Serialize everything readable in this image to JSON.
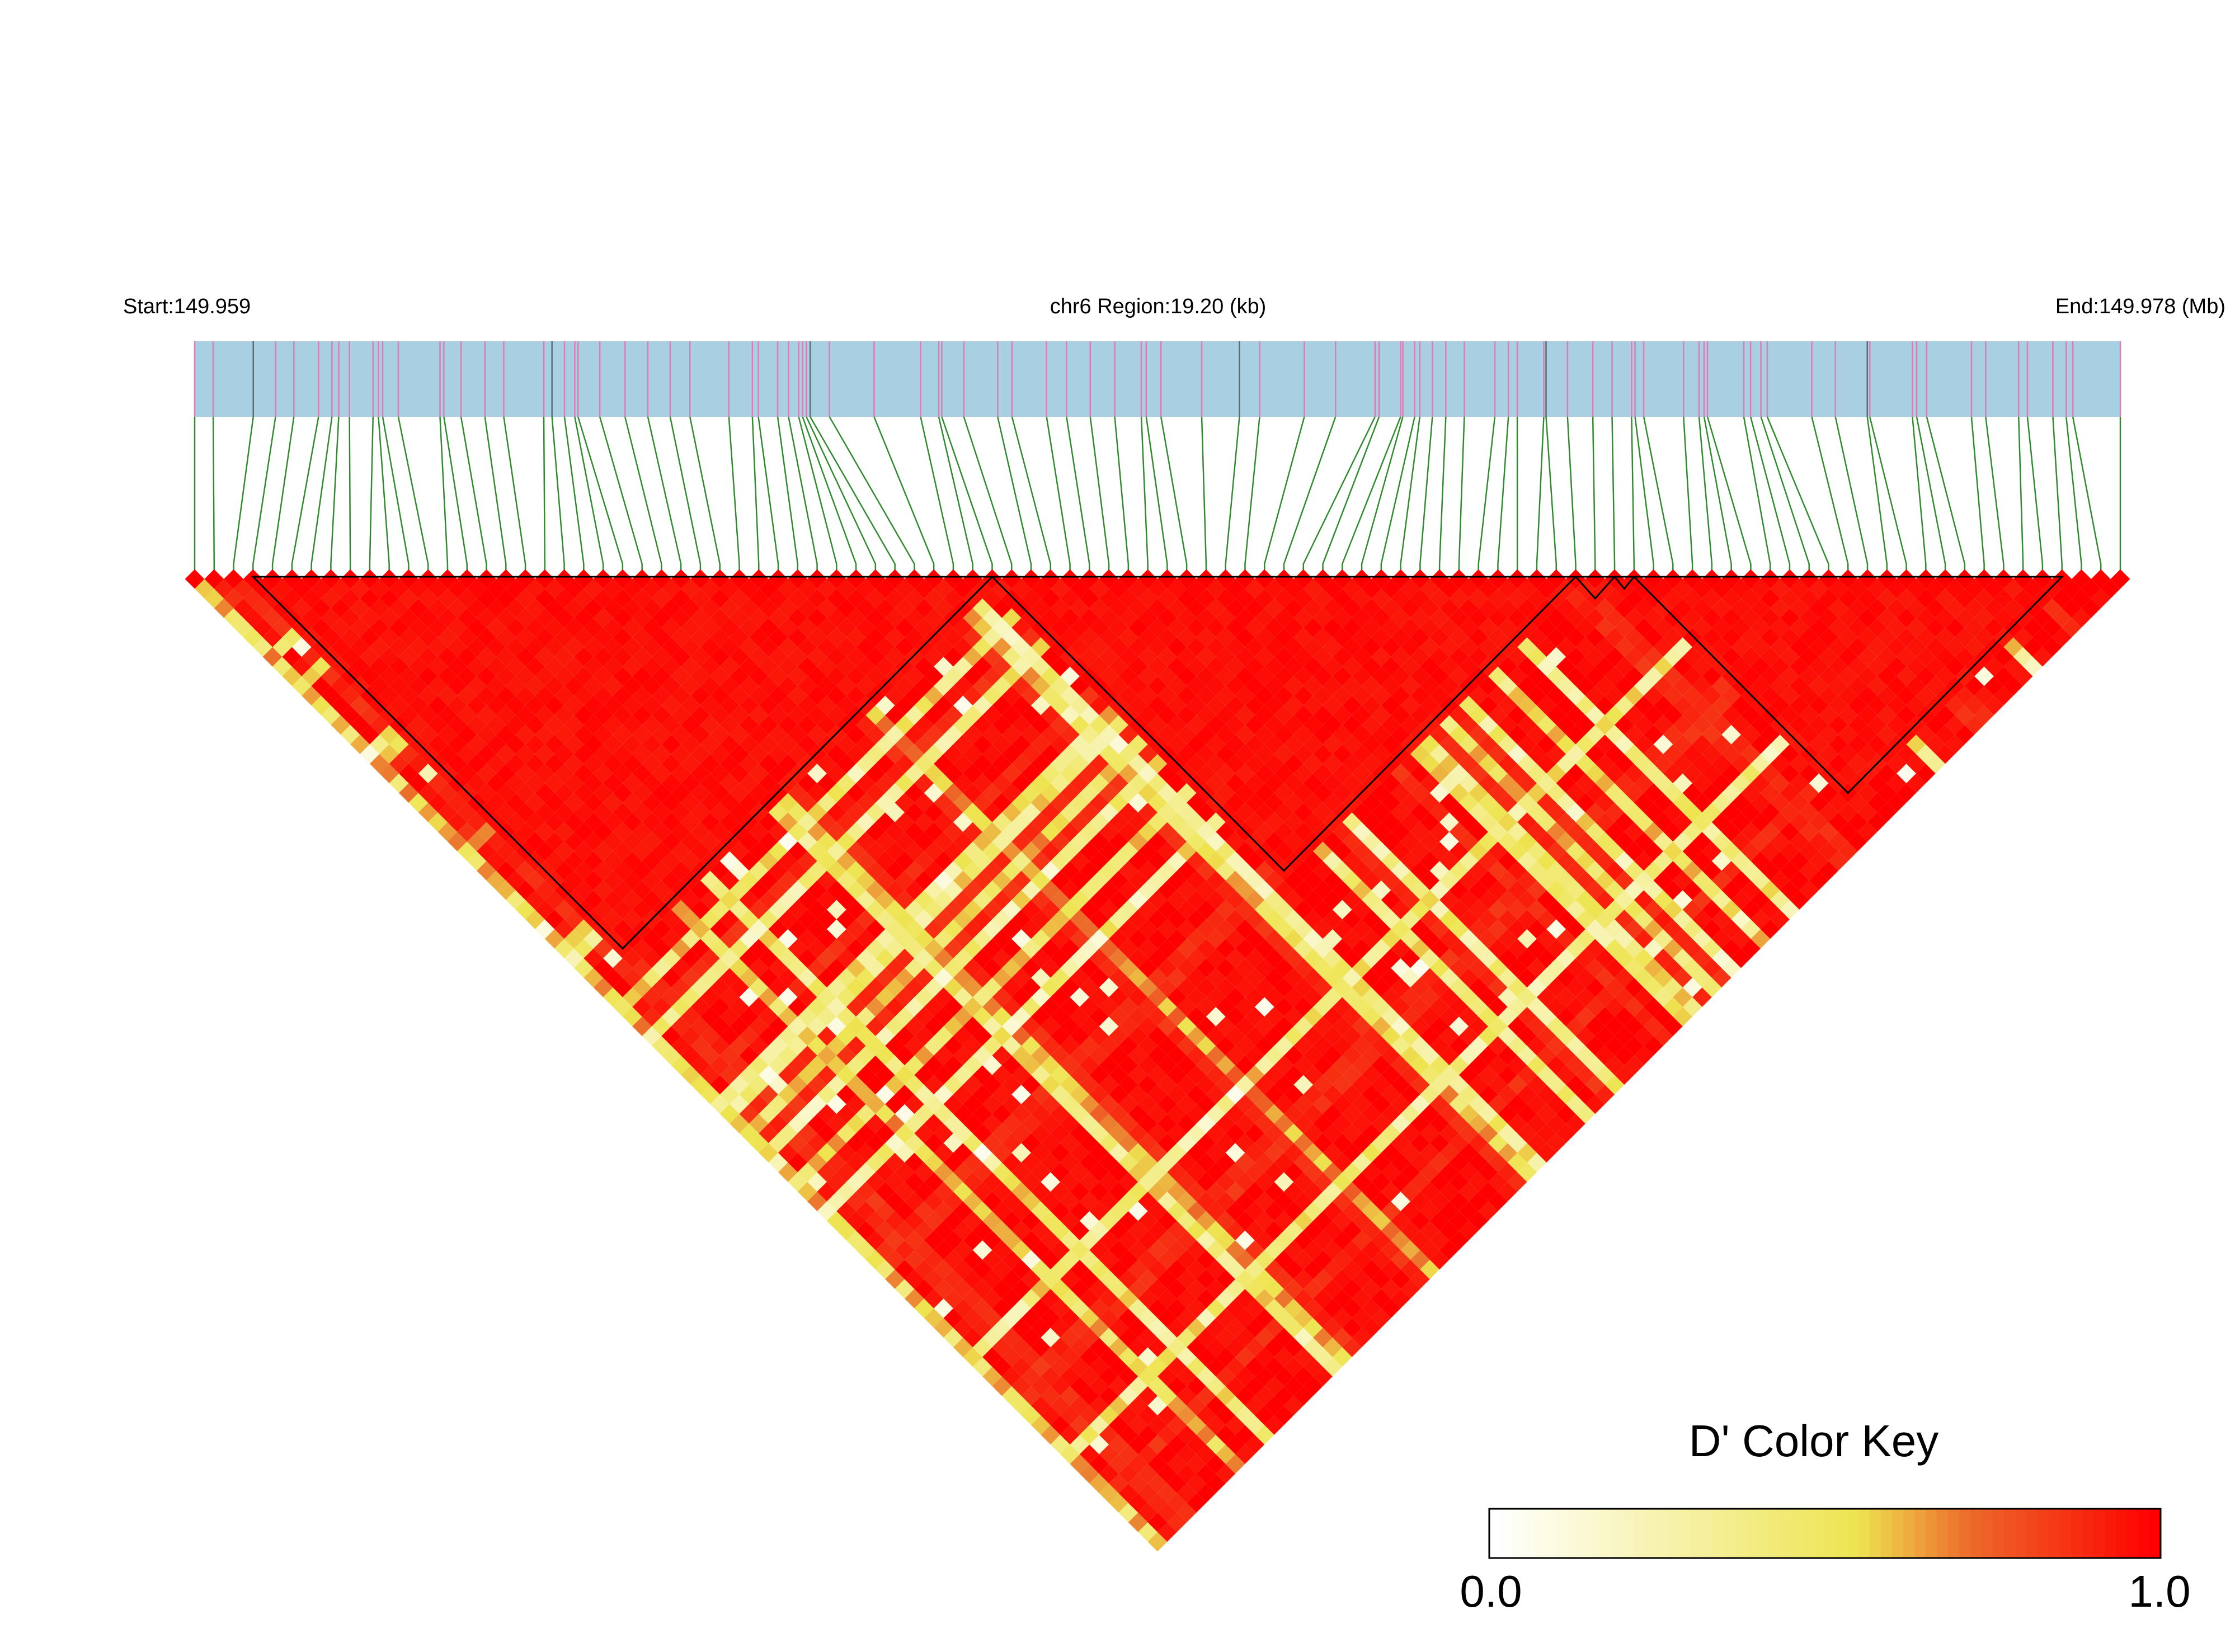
{
  "header": {
    "start_label": "Start:149.959",
    "region_label": "chr6 Region:19.20 (kb)",
    "end_label": "End:149.978 (Mb)"
  },
  "colors": {
    "track_fill": "#a8cfe2",
    "marker_tick": "#e17bb4",
    "marker_tick_dark": "#5c6e6c",
    "connector": "#2e8b2e",
    "ld_high": "#ff0000",
    "ld_mid": "#ec6a2a",
    "ld_low": "#eee450",
    "ld_zero": "#ffffff",
    "block_outline": "#000000"
  },
  "ld_matrix": {
    "marker_count": 100,
    "haplotype_blocks_marker_ranges": [
      [
        3,
        41
      ],
      [
        41,
        71
      ],
      [
        71,
        73
      ],
      [
        73,
        74
      ],
      [
        74,
        96
      ]
    ],
    "dominant_value_description": "mostly high D' (near 1.0) with scattered lower values"
  },
  "color_key": {
    "title": "D' Color Key",
    "min_label": "0.0",
    "max_label": "1.0"
  }
}
